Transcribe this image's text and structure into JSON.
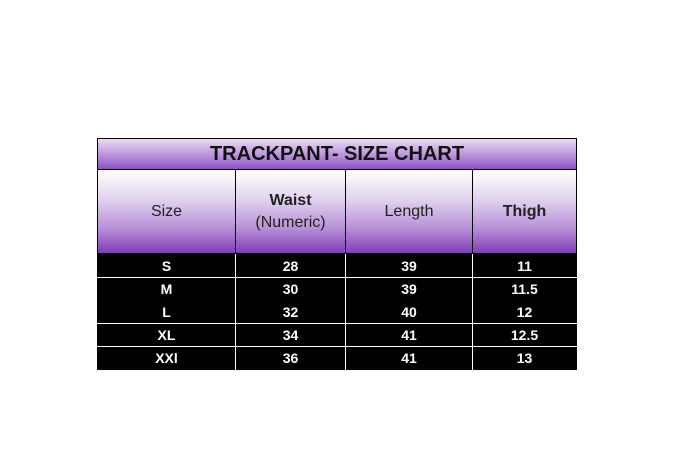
{
  "title": "TRACKPANT- SIZE CHART",
  "headers": [
    "Size",
    "Waist (Numeric)",
    "Length",
    "Thigh"
  ],
  "rows": [
    [
      "S",
      "28",
      "39",
      "11"
    ],
    [
      "M",
      "30",
      "39",
      "11.5"
    ],
    [
      "L",
      "32",
      "40",
      "12"
    ],
    [
      "XL",
      "34",
      "41",
      "12.5"
    ],
    [
      "XXl",
      "36",
      "41",
      "13"
    ]
  ],
  "colors": {
    "header_purple": "#7d3fb8",
    "body_bg": "#000000",
    "body_text": "#ffffff"
  }
}
